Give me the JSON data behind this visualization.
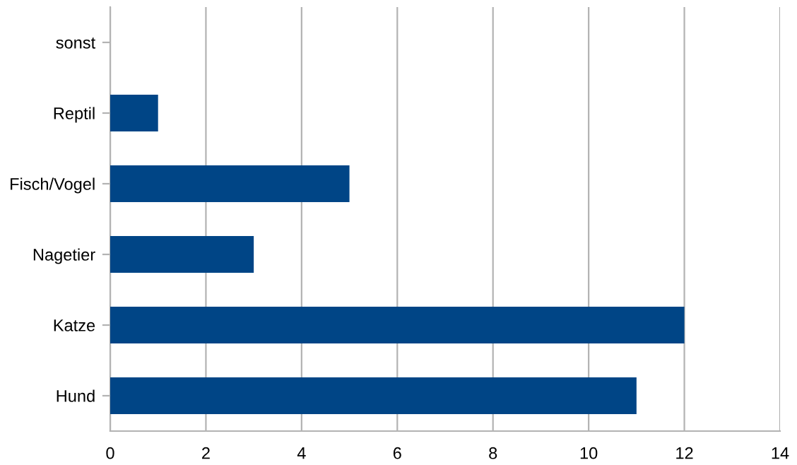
{
  "chart_data": {
    "type": "bar",
    "orientation": "horizontal",
    "categories": [
      "sonst",
      "Reptil",
      "Fisch/Vogel",
      "Nagetier",
      "Katze",
      "Hund"
    ],
    "values": [
      0,
      1,
      5,
      3,
      12,
      11
    ],
    "color": "#004586",
    "xlim": [
      0,
      14
    ],
    "xticks": [
      0,
      2,
      4,
      6,
      8,
      10,
      12,
      14
    ],
    "grid": "x",
    "legend": false
  }
}
